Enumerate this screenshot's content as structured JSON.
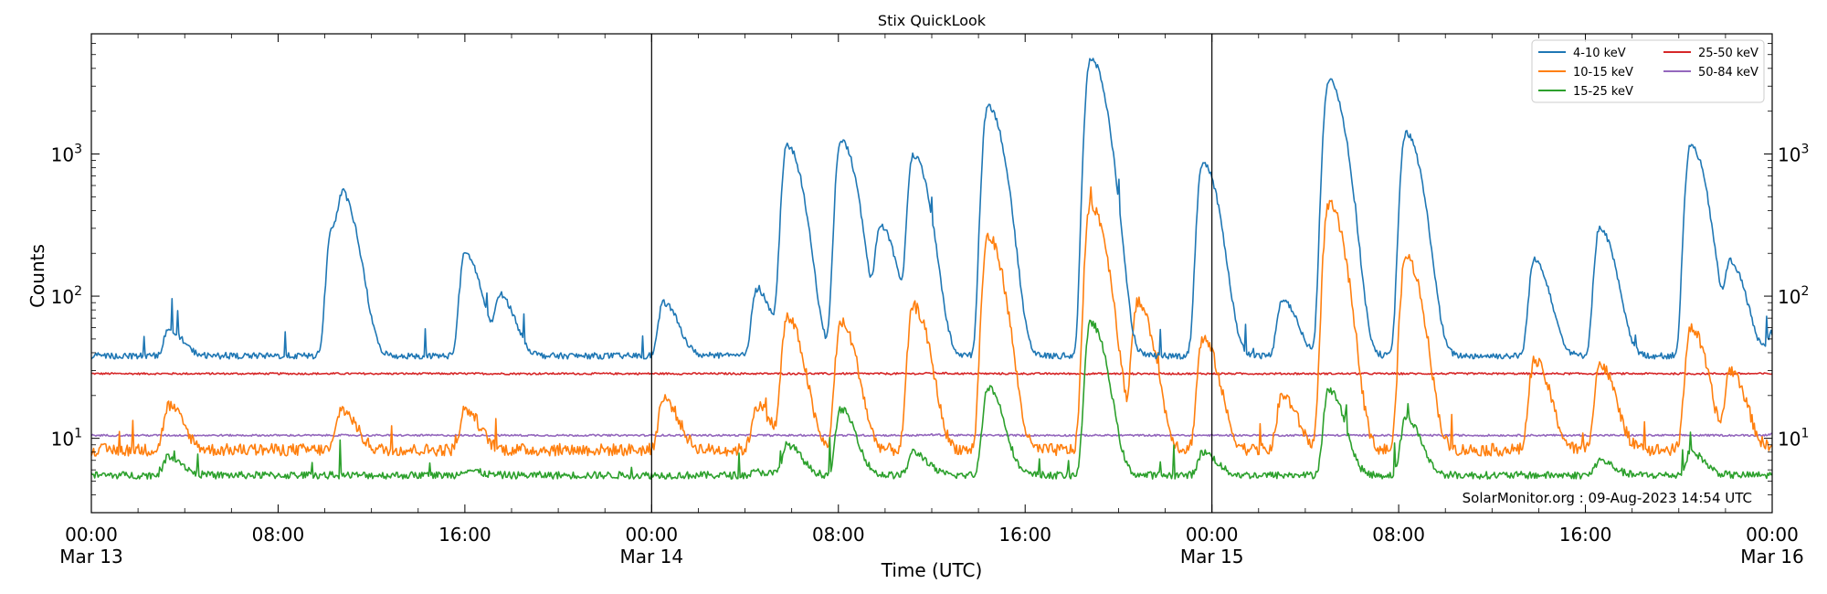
{
  "chart_data": {
    "type": "line",
    "title": "Stix QuickLook",
    "xlabel": "Time (UTC)",
    "ylabel": "Counts",
    "y_scale": "log",
    "ylim": [
      3,
      7000
    ],
    "xlim_hours": [
      0,
      72
    ],
    "x_ticks": [
      {
        "hours": 0,
        "time": "00:00",
        "date": "Mar 13"
      },
      {
        "hours": 8,
        "time": "08:00",
        "date": ""
      },
      {
        "hours": 16,
        "time": "16:00",
        "date": ""
      },
      {
        "hours": 24,
        "time": "00:00",
        "date": "Mar 14"
      },
      {
        "hours": 32,
        "time": "08:00",
        "date": ""
      },
      {
        "hours": 40,
        "time": "16:00",
        "date": ""
      },
      {
        "hours": 48,
        "time": "00:00",
        "date": "Mar 15"
      },
      {
        "hours": 56,
        "time": "08:00",
        "date": ""
      },
      {
        "hours": 64,
        "time": "16:00",
        "date": ""
      },
      {
        "hours": 72,
        "time": "00:00",
        "date": "Mar 16"
      }
    ],
    "y_ticks": [
      {
        "value": 10,
        "base": "10",
        "exp": "1"
      },
      {
        "value": 100,
        "base": "10",
        "exp": "2"
      },
      {
        "value": 1000,
        "base": "10",
        "exp": "3"
      }
    ],
    "day_boundaries_hours": [
      24,
      48
    ],
    "legend_position": "top-right",
    "watermark": "SolarMonitor.org : 09-Aug-2023 14:54 UTC",
    "series": [
      {
        "name": "4-10 keV",
        "color": "#1f77b4",
        "baseline": 38,
        "noise": 0.05,
        "x": [
          0,
          3.3,
          10.3,
          10.8,
          16.0,
          17.5,
          24.5,
          28.5,
          29.8,
          32.1,
          33.8,
          35.2,
          38.4,
          42.8,
          47.6,
          51.0,
          53.0,
          56.3,
          61.8,
          64.6,
          68.5,
          70.2,
          72
        ],
        "y": [
          37,
          58,
          300,
          370,
          200,
          100,
          90,
          110,
          1150,
          1250,
          310,
          970,
          2200,
          4700,
          870,
          95,
          3300,
          1400,
          180,
          300,
          1150,
          170,
          55
        ]
      },
      {
        "name": "10-15 keV",
        "color": "#ff7f0e",
        "baseline": 8.3,
        "noise": 0.1,
        "x": [
          0,
          3.3,
          10.7,
          16.0,
          24.5,
          28.5,
          29.8,
          32.1,
          35.2,
          38.4,
          42.8,
          44.8,
          47.6,
          51.0,
          53.0,
          56.3,
          61.8,
          64.6,
          68.5,
          70.2,
          72
        ],
        "y": [
          8,
          17,
          16,
          16,
          19,
          17,
          70,
          65,
          85,
          260,
          440,
          90,
          50,
          20,
          440,
          190,
          35,
          33,
          60,
          30,
          9
        ]
      },
      {
        "name": "15-25 keV",
        "color": "#2ca02c",
        "baseline": 5.5,
        "noise": 0.06,
        "x": [
          0,
          3.3,
          16.0,
          28.5,
          29.8,
          32.1,
          35.2,
          38.4,
          42.8,
          47.6,
          53.0,
          56.3,
          64.6,
          68.5,
          72
        ],
        "y": [
          5.5,
          7.5,
          6,
          5.8,
          9,
          16,
          8,
          23,
          65,
          8,
          22,
          14,
          7,
          8,
          5.5
        ]
      },
      {
        "name": "25-50 keV",
        "color": "#d62728",
        "baseline": 28.5,
        "noise": 0.015,
        "x": [
          0,
          36,
          72
        ],
        "y": [
          28.5,
          28.8,
          28.5
        ]
      },
      {
        "name": "50-84 keV",
        "color": "#9467bd",
        "baseline": 10.5,
        "noise": 0.015,
        "x": [
          0,
          36,
          72
        ],
        "y": [
          10.5,
          10.6,
          10.7
        ]
      }
    ]
  }
}
